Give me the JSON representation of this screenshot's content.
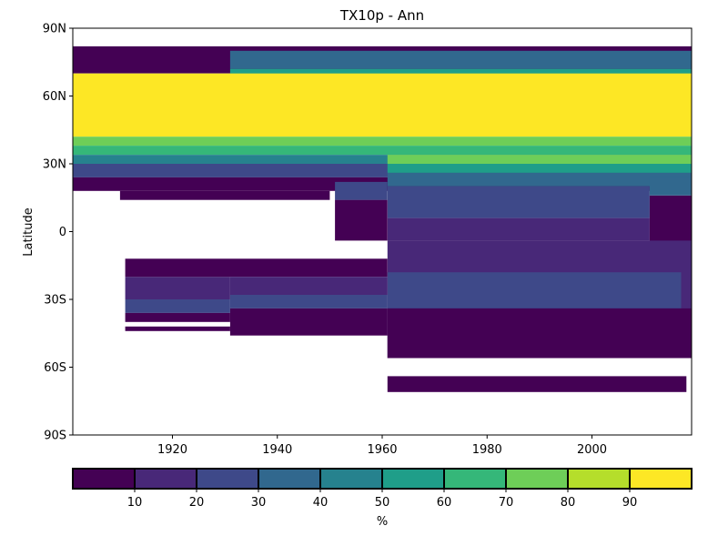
{
  "chart_data": {
    "type": "heatmap",
    "title": "TX10p - Ann",
    "xlabel": "",
    "ylabel": "Latitude",
    "xlim": [
      1901,
      2019
    ],
    "ylim": [
      -90,
      90
    ],
    "x_ticks": [
      1920,
      1940,
      1960,
      1980,
      2000
    ],
    "y_ticks": [
      {
        "value": 90,
        "label": "90N"
      },
      {
        "value": 60,
        "label": "60N"
      },
      {
        "value": 30,
        "label": "30N"
      },
      {
        "value": 0,
        "label": "0"
      },
      {
        "value": -30,
        "label": "30S"
      },
      {
        "value": -60,
        "label": "60S"
      },
      {
        "value": -90,
        "label": "90S"
      }
    ],
    "colorbar": {
      "label": "%",
      "orientation": "horizontal",
      "bounds": [
        0,
        10,
        20,
        30,
        40,
        50,
        60,
        70,
        80,
        90,
        100
      ],
      "tick_values": [
        10,
        20,
        30,
        40,
        50,
        60,
        70,
        80,
        90
      ],
      "colors": [
        "#440154",
        "#482878",
        "#3e4989",
        "#31688e",
        "#26828e",
        "#1f9e89",
        "#35b779",
        "#6ece58",
        "#b5de2b",
        "#fde725"
      ]
    },
    "bands": [
      {
        "lat": [
          70,
          82
        ],
        "year": [
          1901,
          2019
        ],
        "value": 5
      },
      {
        "lat": [
          72,
          80
        ],
        "year": [
          1931,
          2019
        ],
        "value": 35
      },
      {
        "lat": [
          68,
          72
        ],
        "year": [
          1931,
          2019
        ],
        "value": 55
      },
      {
        "lat": [
          42,
          70
        ],
        "year": [
          1901,
          2019
        ],
        "value": 95
      },
      {
        "lat": [
          38,
          42
        ],
        "year": [
          1901,
          2019
        ],
        "value": 75
      },
      {
        "lat": [
          34,
          38
        ],
        "year": [
          1901,
          2019
        ],
        "value": 65
      },
      {
        "lat": [
          30,
          34
        ],
        "year": [
          1901,
          2019
        ],
        "value": 45
      },
      {
        "lat": [
          24,
          30
        ],
        "year": [
          1901,
          2019
        ],
        "value": 25
      },
      {
        "lat": [
          18,
          24
        ],
        "year": [
          1901,
          2019
        ],
        "value": 5
      },
      {
        "lat": [
          14,
          18
        ],
        "year": [
          1910,
          1950
        ],
        "value": 5
      },
      {
        "lat": [
          30,
          34
        ],
        "year": [
          1961,
          2019
        ],
        "value": 75
      },
      {
        "lat": [
          26,
          30
        ],
        "year": [
          1961,
          2019
        ],
        "value": 55
      },
      {
        "lat": [
          20,
          26
        ],
        "year": [
          1961,
          2019
        ],
        "value": 35
      },
      {
        "lat": [
          6,
          20
        ],
        "year": [
          1961,
          2011
        ],
        "value": 25
      },
      {
        "lat": [
          -4,
          6
        ],
        "year": [
          1961,
          2011
        ],
        "value": 15
      },
      {
        "lat": [
          14,
          22
        ],
        "year": [
          1951,
          1961
        ],
        "value": 25
      },
      {
        "lat": [
          -4,
          14
        ],
        "year": [
          1951,
          1961
        ],
        "value": 5
      },
      {
        "lat": [
          -4,
          16
        ],
        "year": [
          2011,
          2019
        ],
        "value": 5
      },
      {
        "lat": [
          16,
          24
        ],
        "year": [
          2011,
          2019
        ],
        "value": 35
      },
      {
        "lat": [
          -56,
          -4
        ],
        "year": [
          1961,
          2019
        ],
        "value": 15
      },
      {
        "lat": [
          -34,
          -18
        ],
        "year": [
          1961,
          2017
        ],
        "value": 25
      },
      {
        "lat": [
          -36,
          -30
        ],
        "year": [
          1911,
          1931
        ],
        "value": 25
      },
      {
        "lat": [
          -30,
          -20
        ],
        "year": [
          1911,
          1931
        ],
        "value": 15
      },
      {
        "lat": [
          -20,
          -12
        ],
        "year": [
          1911,
          1961
        ],
        "value": 5
      },
      {
        "lat": [
          -28,
          -20
        ],
        "year": [
          1931,
          1961
        ],
        "value": 15
      },
      {
        "lat": [
          -34,
          -28
        ],
        "year": [
          1931,
          1961
        ],
        "value": 25
      },
      {
        "lat": [
          -40,
          -36
        ],
        "year": [
          1911,
          1931
        ],
        "value": 5
      },
      {
        "lat": [
          -46,
          -34
        ],
        "year": [
          1931,
          1961
        ],
        "value": 5
      },
      {
        "lat": [
          -44,
          -42
        ],
        "year": [
          1911,
          1931
        ],
        "value": 5
      },
      {
        "lat": [
          -56,
          -34
        ],
        "year": [
          1961,
          2019
        ],
        "value": 5
      },
      {
        "lat": [
          -71,
          -64
        ],
        "year": [
          1961,
          2018
        ],
        "value": 5
      }
    ]
  }
}
